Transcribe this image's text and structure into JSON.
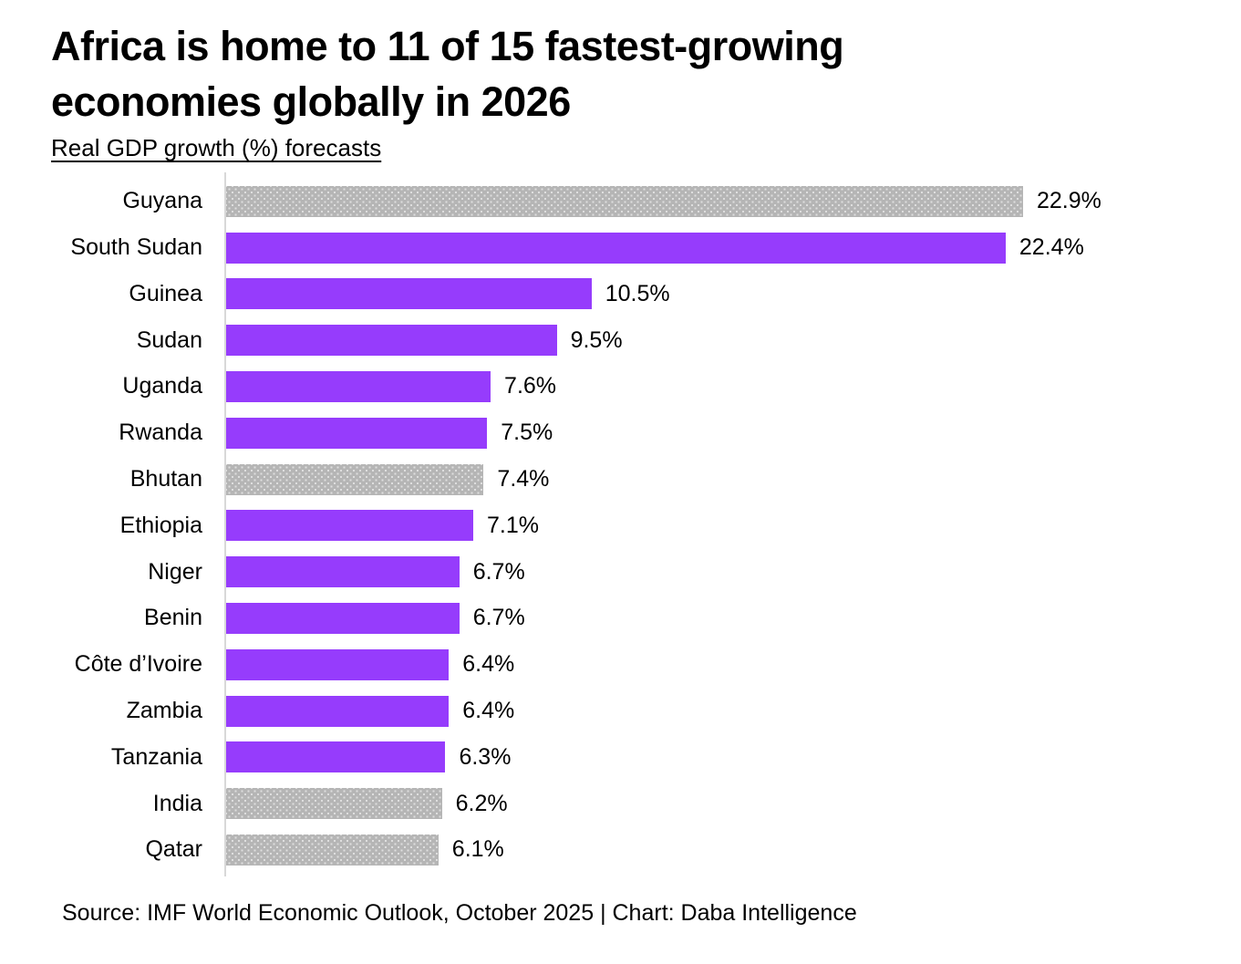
{
  "page": {
    "background": "#ffffff"
  },
  "header": {
    "title_lines": [
      "Africa is home to 11 of 15 fastest-growing",
      "economies globally in 2026"
    ],
    "subtitle": "Real GDP growth (%) forecasts"
  },
  "footer": {
    "source": "Source: IMF World Economic Outlook, October 2025 | Chart: Daba Intelligence"
  },
  "chart_data": {
    "type": "bar",
    "orientation": "horizontal",
    "title": "Africa is home to 11 of 15 fastest-growing economies globally in 2026",
    "subtitle": "Real GDP growth (%) forecasts",
    "unit": "%",
    "xlim": [
      0,
      22.9
    ],
    "grid": false,
    "legend": false,
    "value_label_position": "end-of-bar",
    "colors": {
      "africa_bar": "#963cfc",
      "non_africa_bar": "#b5b5b5",
      "non_africa_dot": "#dedede",
      "axis_line": "#d8d8d8",
      "text": "#000000"
    },
    "rows": [
      {
        "label": "Guyana",
        "value": 22.9,
        "display": "22.9%",
        "group": "non-africa"
      },
      {
        "label": "South Sudan",
        "value": 22.4,
        "display": "22.4%",
        "group": "africa"
      },
      {
        "label": "Guinea",
        "value": 10.5,
        "display": "10.5%",
        "group": "africa"
      },
      {
        "label": "Sudan",
        "value": 9.5,
        "display": "9.5%",
        "group": "africa"
      },
      {
        "label": "Uganda",
        "value": 7.6,
        "display": "7.6%",
        "group": "africa"
      },
      {
        "label": "Rwanda",
        "value": 7.5,
        "display": "7.5%",
        "group": "africa"
      },
      {
        "label": "Bhutan",
        "value": 7.4,
        "display": "7.4%",
        "group": "non-africa"
      },
      {
        "label": "Ethiopia",
        "value": 7.1,
        "display": "7.1%",
        "group": "africa"
      },
      {
        "label": "Niger",
        "value": 6.7,
        "display": "6.7%",
        "group": "africa"
      },
      {
        "label": "Benin",
        "value": 6.7,
        "display": "6.7%",
        "group": "africa"
      },
      {
        "label": "Côte d’Ivoire",
        "value": 6.4,
        "display": "6.4%",
        "group": "africa"
      },
      {
        "label": "Zambia",
        "value": 6.4,
        "display": "6.4%",
        "group": "africa"
      },
      {
        "label": "Tanzania",
        "value": 6.3,
        "display": "6.3%",
        "group": "africa"
      },
      {
        "label": "India",
        "value": 6.2,
        "display": "6.2%",
        "group": "non-africa"
      },
      {
        "label": "Qatar",
        "value": 6.1,
        "display": "6.1%",
        "group": "non-africa"
      }
    ]
  }
}
